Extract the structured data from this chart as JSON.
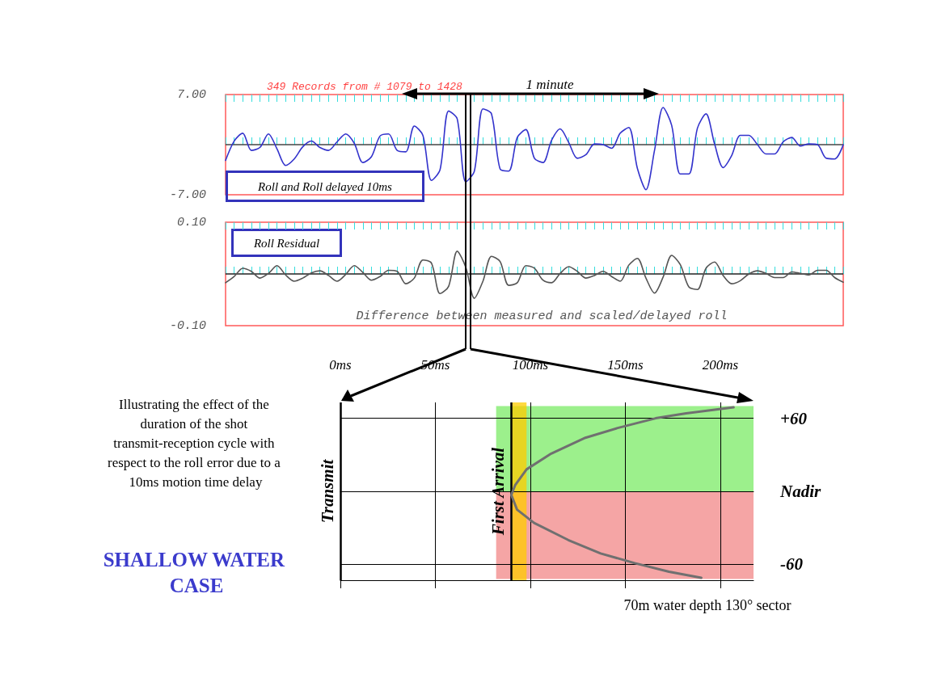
{
  "chart_data": [
    {
      "type": "line",
      "title": "349 Records from # 1079 to 1428",
      "categories": [
        null,
        null,
        null,
        null,
        null,
        null,
        null,
        null,
        null,
        null,
        null,
        null,
        null,
        null,
        null,
        null,
        null,
        null,
        null,
        null,
        null,
        null,
        null,
        null,
        null,
        null,
        null,
        null,
        null,
        null,
        null,
        null,
        null,
        null,
        null,
        null,
        null,
        null,
        null,
        null,
        null,
        null,
        null,
        null,
        null,
        null,
        null,
        null,
        null,
        null,
        null,
        null,
        null,
        null,
        null,
        null,
        null,
        null,
        null,
        null,
        null,
        null,
        null,
        null,
        null,
        null,
        null,
        null,
        null,
        null,
        null,
        null,
        null
      ],
      "series": [
        {
          "color": "#3333cc",
          "values": [
            -2.2,
            0.5,
            1.6,
            -0.8,
            -0.4,
            1.5,
            -0.6,
            -2.9,
            -2.0,
            -0.3,
            0.5,
            -0.4,
            -0.8,
            0.4,
            1.5,
            0.2,
            -2.5,
            -1.7,
            1.2,
            1.5,
            -0.8,
            -1.0,
            2.6,
            1.3,
            -5.0,
            -3.5,
            4.7,
            3.6,
            -5.2,
            -3.7,
            5.0,
            4.3,
            -3.4,
            -3.7,
            1.0,
            2.1,
            -1.9,
            -2.5,
            0.6,
            2.2,
            0.3,
            -1.9,
            -1.4,
            0.1,
            0.0,
            -0.5,
            1.6,
            2.4,
            -3.3,
            -6.3,
            -0.8,
            5.2,
            2.7,
            -4.1,
            -4.1,
            2.3,
            4.3,
            0.1,
            -3.2,
            -1.5,
            1.3,
            1.3,
            0.0,
            -1.3,
            -1.3,
            0.4,
            1.0,
            -0.2,
            0.1,
            0.0,
            -1.9,
            -2.0,
            0.0
          ]
        }
      ],
      "ylim": [
        -7,
        7
      ],
      "yticks": [
        {
          "value": 7,
          "label": "7.00"
        },
        {
          "value": -7,
          "label": "-7.00"
        }
      ],
      "ref_lines": [
        {
          "axis": "y",
          "value": 0,
          "color": "#444444"
        }
      ],
      "marker": "none",
      "line_style": "solid",
      "annotations": [
        "1 minute",
        "Roll and Roll delayed 10ms"
      ]
    },
    {
      "type": "line",
      "categories": [
        null,
        null,
        null,
        null,
        null,
        null,
        null,
        null,
        null,
        null,
        null,
        null,
        null,
        null,
        null,
        null,
        null,
        null,
        null,
        null,
        null,
        null,
        null,
        null,
        null,
        null,
        null,
        null,
        null,
        null,
        null,
        null,
        null,
        null,
        null,
        null,
        null,
        null,
        null,
        null,
        null,
        null,
        null,
        null,
        null,
        null,
        null,
        null,
        null,
        null,
        null,
        null,
        null,
        null,
        null,
        null,
        null,
        null,
        null,
        null,
        null,
        null,
        null,
        null,
        null,
        null,
        null,
        null,
        null,
        null,
        null,
        null,
        null
      ],
      "series": [
        {
          "color": "#555555",
          "values": [
            -0.017,
            -0.005,
            0.011,
            0.005,
            -0.008,
            0.001,
            0.016,
            -0.002,
            -0.014,
            -0.008,
            0.002,
            0.006,
            -0.003,
            -0.014,
            -0.001,
            0.016,
            0.003,
            -0.012,
            -0.005,
            0.007,
            0.005,
            -0.019,
            -0.008,
            0.027,
            0.021,
            -0.038,
            -0.024,
            0.044,
            0.013,
            -0.047,
            -0.014,
            0.034,
            0.024,
            -0.022,
            -0.017,
            0.016,
            0.011,
            -0.012,
            -0.017,
            0.001,
            0.014,
            0.005,
            -0.008,
            -0.003,
            0.005,
            -0.005,
            -0.014,
            0.017,
            0.03,
            -0.008,
            -0.037,
            -0.006,
            0.036,
            0.018,
            -0.025,
            -0.03,
            0.011,
            0.023,
            -0.003,
            -0.019,
            -0.013,
            0.0,
            0.006,
            0.001,
            -0.007,
            -0.007,
            0.004,
            0.001,
            -0.002,
            0.007,
            0.007,
            -0.007,
            -0.016
          ]
        }
      ],
      "ylim": [
        -0.1,
        0.1
      ],
      "yticks": [
        {
          "value": 0.1,
          "label": "0.10"
        },
        {
          "value": -0.1,
          "label": "-0.10"
        }
      ],
      "ref_lines": [
        {
          "axis": "y",
          "value": 0,
          "color": "#222222"
        }
      ],
      "marker": "none",
      "line_style": "solid",
      "annotations": [
        "Roll Residual",
        "Difference between measured and scaled/delayed roll"
      ]
    },
    {
      "type": "line",
      "series": [
        {
          "type": "area",
          "color": "#9cf08c",
          "x": [
            82,
            217.5
          ],
          "values": [
            70,
            70
          ]
        },
        {
          "type": "area",
          "color": "#f5a5a5",
          "x": [
            82,
            217.5
          ],
          "values": [
            -72,
            -72
          ]
        },
        {
          "color": "#707070",
          "x": [
            207,
            182,
            166,
            146,
            129,
            111,
            98,
            92,
            90,
            93,
            102,
            120,
            137,
            155,
            173,
            190
          ],
          "values": [
            69,
            64,
            60,
            52,
            44,
            31,
            18,
            5,
            -3,
            -15,
            -26,
            -40,
            -51,
            -59,
            -66,
            -71
          ]
        }
      ],
      "xlim": [
        0,
        217.5
      ],
      "xticks": [
        {
          "value": 0,
          "label": "0ms"
        },
        {
          "value": 50,
          "label": "50ms"
        },
        {
          "value": 100,
          "label": "100ms"
        },
        {
          "value": 150,
          "label": "150ms"
        },
        {
          "value": 200,
          "label": "200ms"
        }
      ],
      "ylim": [
        -73,
        73
      ],
      "yticks": [
        {
          "value": 60,
          "label": "+60"
        },
        {
          "value": 0,
          "label": "Nadir"
        },
        {
          "value": -60,
          "label": "-60"
        }
      ],
      "grid": true,
      "marker": "none",
      "line_style": "solid",
      "bands": [
        {
          "axis": "x",
          "from": 90,
          "to": 98,
          "color": "#ffcc00"
        }
      ],
      "ref_lines": [
        {
          "axis": "x",
          "value": 90,
          "label": "First Arrival",
          "color": "#000000"
        },
        {
          "axis": "x",
          "value": 0,
          "label": "Transmit",
          "color": "#000000"
        }
      ],
      "annotations": [
        "Illustrating the effect of the duration of the shot transmit-reception cycle with respect to the roll error due to a 10ms motion time delay",
        "SHALLOW WATER CASE",
        "70m water depth 130° sector"
      ]
    }
  ]
}
